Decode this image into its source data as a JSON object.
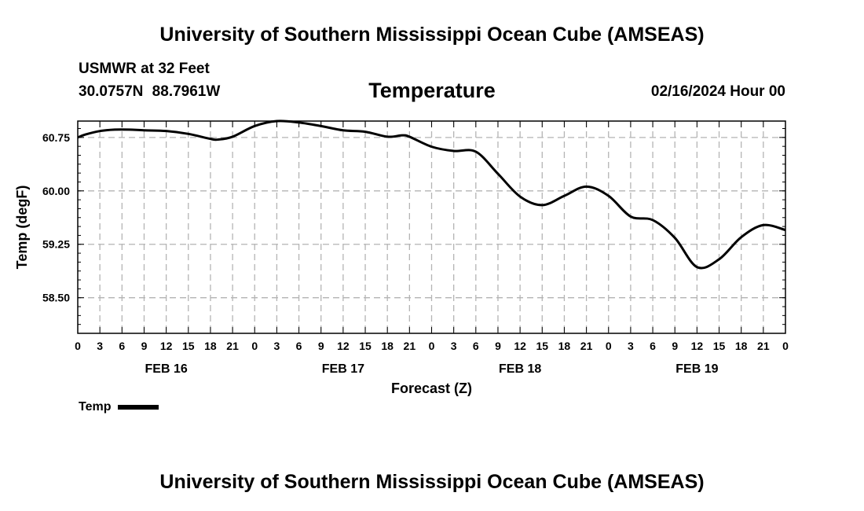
{
  "page": {
    "title_top": "University of Southern Mississippi Ocean Cube (AMSEAS)",
    "title_bottom": "University of Southern Mississippi Ocean Cube (AMSEAS)",
    "station": "USMWR at 32 Feet",
    "coordinates": "30.0757N  88.7961W",
    "variable": "Temperature",
    "datetime": "02/16/2024 Hour 00"
  },
  "chart_data": {
    "type": "line",
    "title": "Temperature",
    "xlabel": "Forecast (Z)",
    "ylabel": "Temp (degF)",
    "ylim": [
      58.0,
      60.98
    ],
    "xlim": [
      0,
      96
    ],
    "yticks": [
      58.5,
      59.25,
      60.0,
      60.75
    ],
    "ytick_labels": [
      "58.50",
      "59.25",
      "60.00",
      "60.75"
    ],
    "xtick_labels": [
      "0",
      "3",
      "6",
      "9",
      "12",
      "15",
      "18",
      "21",
      "0",
      "3",
      "6",
      "9",
      "12",
      "15",
      "18",
      "21",
      "0",
      "3",
      "6",
      "9",
      "12",
      "15",
      "18",
      "21",
      "0",
      "3",
      "6",
      "9",
      "12",
      "15",
      "18",
      "21",
      "0"
    ],
    "date_labels": [
      {
        "hour": 12,
        "label": "FEB 16"
      },
      {
        "hour": 36,
        "label": "FEB 17"
      },
      {
        "hour": 60,
        "label": "FEB 18"
      },
      {
        "hour": 84,
        "label": "FEB 19"
      }
    ],
    "grid": true,
    "series": [
      {
        "name": "Temp",
        "color": "#000000",
        "x": [
          0,
          1,
          3,
          5,
          7,
          9,
          12,
          15,
          18,
          19,
          21,
          24,
          27,
          30,
          33,
          36,
          39,
          42,
          44,
          45,
          48,
          51,
          54,
          57,
          60,
          63,
          66,
          69,
          72,
          75,
          78,
          81,
          84,
          87,
          90,
          93,
          96
        ],
        "values": [
          60.75,
          60.79,
          60.84,
          60.86,
          60.86,
          60.85,
          60.84,
          60.8,
          60.73,
          60.72,
          60.76,
          60.91,
          60.98,
          60.96,
          60.91,
          60.85,
          60.83,
          60.76,
          60.78,
          60.76,
          60.62,
          60.56,
          60.55,
          60.24,
          59.92,
          59.8,
          59.93,
          60.06,
          59.93,
          59.64,
          59.59,
          59.34,
          58.93,
          59.04,
          59.35,
          59.52,
          59.45
        ]
      }
    ],
    "legend": {
      "label": "Temp",
      "position": "bottom-left"
    }
  }
}
